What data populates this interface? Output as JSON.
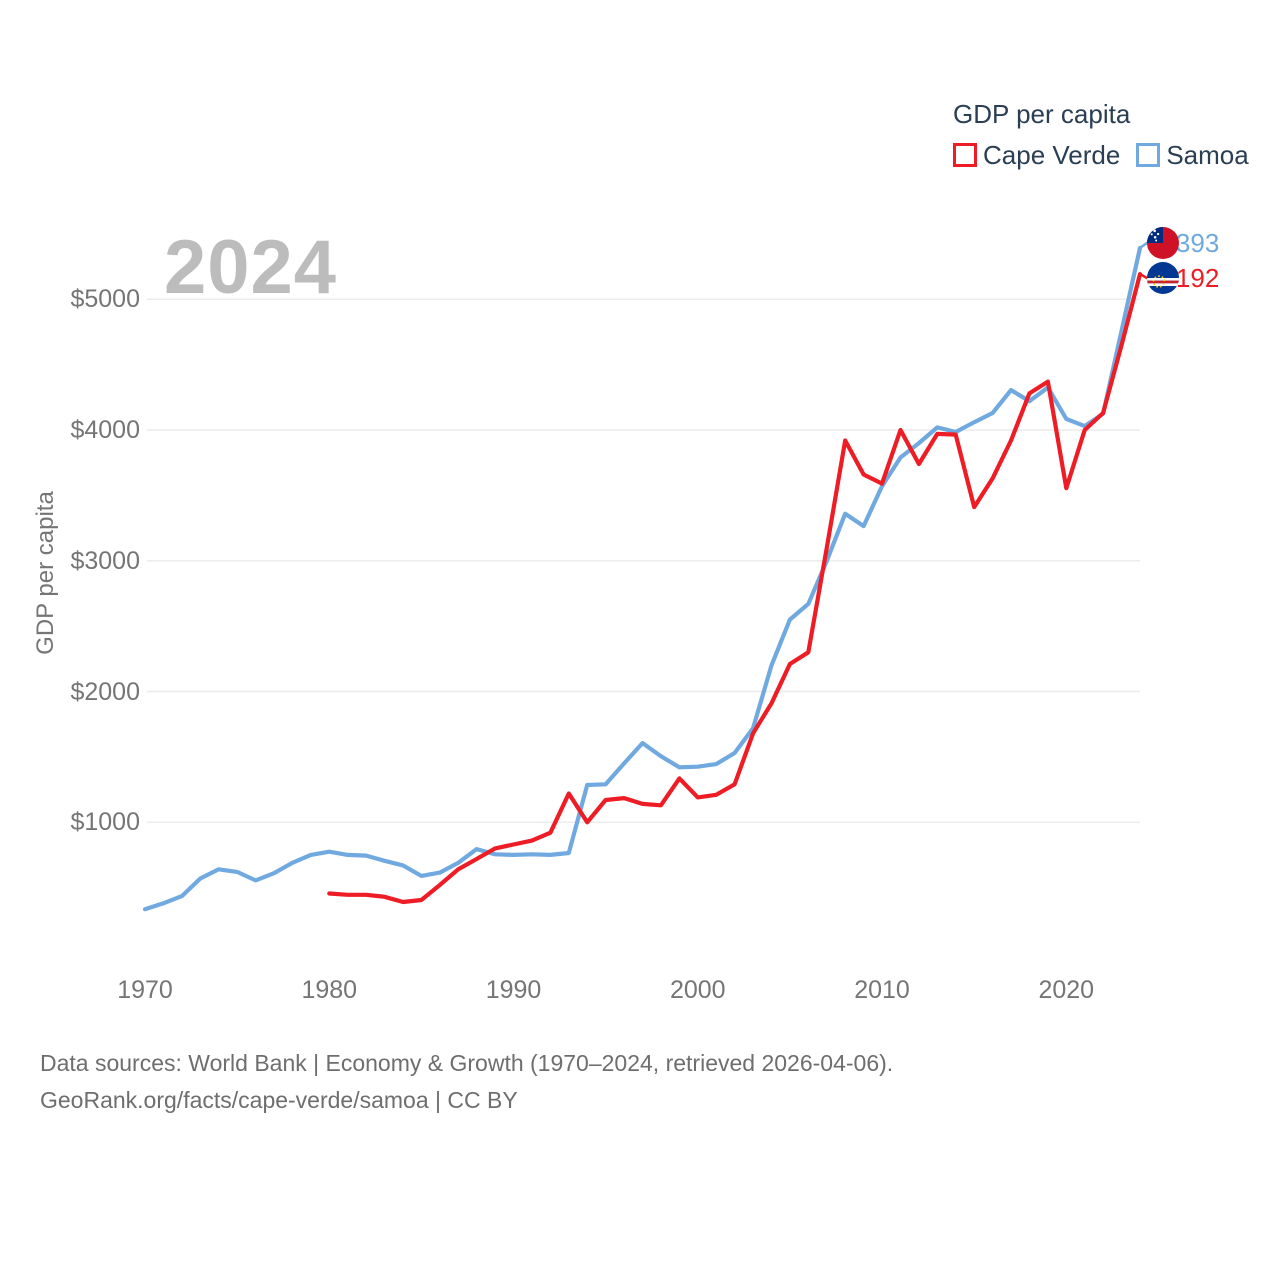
{
  "watermark": "2024",
  "y_axis_title": "GDP per capita",
  "legend": {
    "title": "GDP per capita",
    "items": [
      {
        "label": "Cape Verde",
        "color": "#ee1c25"
      },
      {
        "label": "Samoa",
        "color": "#70a9e0"
      }
    ]
  },
  "end_labels": [
    {
      "series": "Samoa",
      "value": "$5393",
      "color": "#70a9e0",
      "flag_icon": "samoa-flag"
    },
    {
      "series": "Cape Verde",
      "value": "$5192",
      "color": "#ee1c25",
      "flag_icon": "cape-verde-flag"
    }
  ],
  "footer": {
    "line1": "Data sources: World Bank | Economy & Growth (1970–2024, retrieved 2026-04-06).",
    "line2": "GeoRank.org/facts/cape-verde/samoa | CC BY"
  },
  "chart_data": {
    "type": "line",
    "title": "GDP per capita",
    "xlabel": "",
    "ylabel": "GDP per capita",
    "xlim": [
      1970,
      2024
    ],
    "ylim": [
      0,
      5500
    ],
    "grid": "horizontal",
    "legend_position": "top-right",
    "x": [
      1970,
      1971,
      1972,
      1973,
      1974,
      1975,
      1976,
      1977,
      1978,
      1979,
      1980,
      1981,
      1982,
      1983,
      1984,
      1985,
      1986,
      1987,
      1988,
      1989,
      1990,
      1991,
      1992,
      1993,
      1994,
      1995,
      1996,
      1997,
      1998,
      1999,
      2000,
      2001,
      2002,
      2003,
      2004,
      2005,
      2006,
      2007,
      2008,
      2009,
      2010,
      2011,
      2012,
      2013,
      2014,
      2015,
      2016,
      2017,
      2018,
      2019,
      2020,
      2021,
      2022,
      2023,
      2024
    ],
    "x_tick_labels": [
      "1970",
      "1980",
      "1990",
      "2000",
      "2010",
      "2020"
    ],
    "y_ticks": [
      1000,
      2000,
      3000,
      4000,
      5000
    ],
    "y_tick_labels": [
      "$1000",
      "$2000",
      "$3000",
      "$4000",
      "$5000"
    ],
    "series": [
      {
        "name": "Samoa",
        "color": "#70a9e0",
        "end_value": 5393,
        "values": [
          335,
          380,
          435,
          570,
          640,
          620,
          555,
          610,
          690,
          750,
          775,
          750,
          745,
          705,
          670,
          590,
          615,
          690,
          795,
          755,
          750,
          755,
          750,
          765,
          1285,
          1290,
          1450,
          1605,
          1505,
          1420,
          1425,
          1445,
          1530,
          1720,
          2200,
          2550,
          2670,
          3000,
          3360,
          3265,
          3570,
          3790,
          3900,
          4020,
          3985,
          4060,
          4130,
          4305,
          4220,
          4325,
          4085,
          4030,
          4125,
          4760,
          5393
        ]
      },
      {
        "name": "Cape Verde",
        "color": "#ee1c25",
        "end_value": 5192,
        "values": [
          null,
          null,
          null,
          null,
          null,
          null,
          null,
          null,
          null,
          null,
          455,
          445,
          445,
          430,
          390,
          405,
          520,
          640,
          720,
          800,
          830,
          860,
          920,
          1220,
          1000,
          1170,
          1185,
          1140,
          1130,
          1335,
          1190,
          1210,
          1290,
          1680,
          1910,
          2210,
          2300,
          3100,
          3920,
          3660,
          3590,
          4000,
          3740,
          3970,
          3965,
          3410,
          3630,
          3920,
          4280,
          4370,
          3555,
          4000,
          4130,
          4650,
          5192
        ]
      }
    ]
  }
}
